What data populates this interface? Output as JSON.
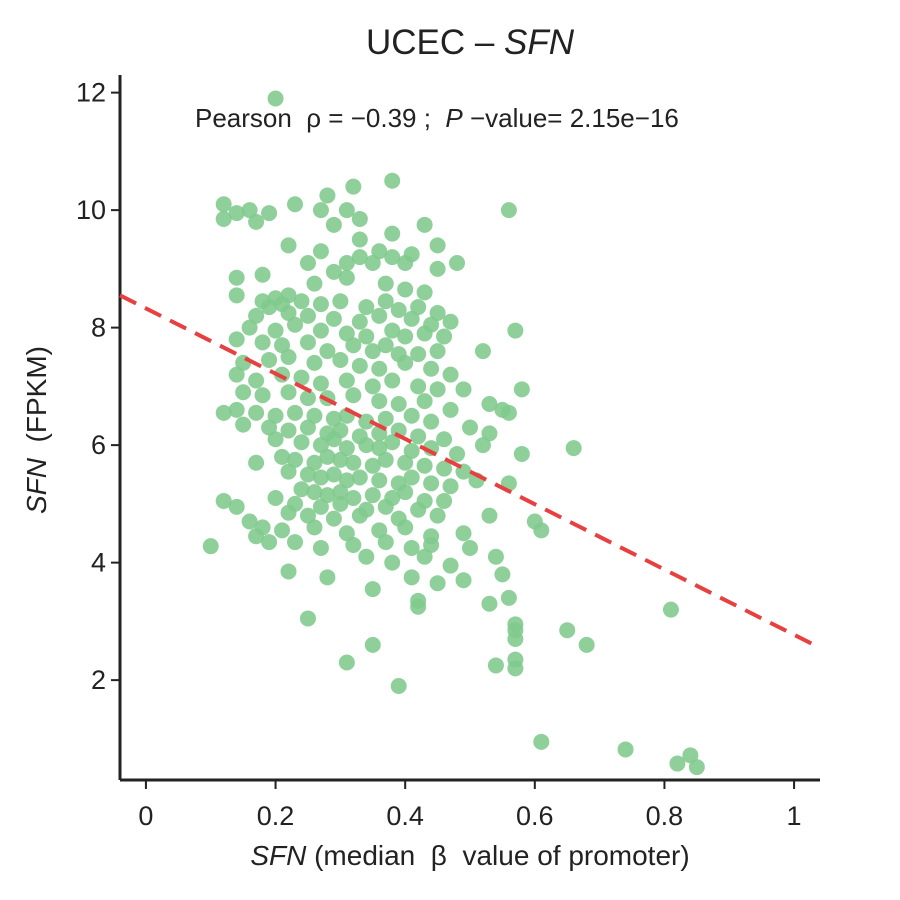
{
  "chart_data": {
    "type": "scatter",
    "title_parts": {
      "cancer": "UCEC",
      "sep": " – ",
      "gene": "SFN"
    },
    "xlabel_parts": {
      "gene": "SFN",
      "rest": " (median  β  value of promoter)"
    },
    "ylabel_parts": {
      "gene": "SFN",
      "rest": "  (FPKM)"
    },
    "annotation_parts": {
      "pre": "Pearson  ρ = −0.39 ;  ",
      "p": "P",
      "post": " −value= 2.15e−16"
    },
    "xlim": [
      -0.04,
      1.04
    ],
    "ylim": [
      0.3,
      12.3
    ],
    "x_ticks": [
      0,
      0.2,
      0.4,
      0.6,
      0.8,
      1
    ],
    "x_tick_labels": [
      "0",
      "0.2",
      "0.4",
      "0.6",
      "0.8",
      "1"
    ],
    "y_ticks": [
      2,
      4,
      6,
      8,
      10,
      12
    ],
    "y_tick_labels": [
      "2",
      "4",
      "6",
      "8",
      "10",
      "12"
    ],
    "point_color": "#7fca8c",
    "trend_color": "#e84040",
    "trend_line": {
      "x": [
        -0.04,
        1.04
      ],
      "y": [
        8.55,
        2.55
      ],
      "style": "dashed"
    },
    "grid": false,
    "legend": "none",
    "points": [
      [
        0.2,
        11.9
      ],
      [
        0.38,
        10.5
      ],
      [
        0.32,
        10.4
      ],
      [
        0.28,
        10.25
      ],
      [
        0.31,
        10.0
      ],
      [
        0.12,
        10.1
      ],
      [
        0.23,
        10.1
      ],
      [
        0.14,
        9.95
      ],
      [
        0.16,
        10.0
      ],
      [
        0.19,
        9.95
      ],
      [
        0.12,
        9.85
      ],
      [
        0.17,
        9.8
      ],
      [
        0.27,
        10.0
      ],
      [
        0.33,
        9.85
      ],
      [
        0.29,
        9.75
      ],
      [
        0.43,
        9.75
      ],
      [
        0.38,
        9.6
      ],
      [
        0.56,
        10.0
      ],
      [
        0.33,
        9.5
      ],
      [
        0.45,
        9.4
      ],
      [
        0.41,
        9.25
      ],
      [
        0.48,
        9.1
      ],
      [
        0.22,
        9.4
      ],
      [
        0.27,
        9.3
      ],
      [
        0.31,
        9.1
      ],
      [
        0.35,
        9.1
      ],
      [
        0.38,
        9.2
      ],
      [
        0.4,
        9.1
      ],
      [
        0.45,
        9.0
      ],
      [
        0.25,
        9.1
      ],
      [
        0.33,
        9.2
      ],
      [
        0.36,
        9.3
      ],
      [
        0.14,
        8.85
      ],
      [
        0.18,
        8.9
      ],
      [
        0.29,
        8.95
      ],
      [
        0.31,
        8.85
      ],
      [
        0.37,
        8.75
      ],
      [
        0.26,
        8.75
      ],
      [
        0.4,
        8.65
      ],
      [
        0.43,
        8.6
      ],
      [
        0.22,
        8.55
      ],
      [
        0.14,
        8.55
      ],
      [
        0.2,
        8.5
      ],
      [
        0.18,
        8.45
      ],
      [
        0.21,
        8.4
      ],
      [
        0.24,
        8.45
      ],
      [
        0.27,
        8.4
      ],
      [
        0.3,
        8.45
      ],
      [
        0.34,
        8.35
      ],
      [
        0.37,
        8.45
      ],
      [
        0.39,
        8.3
      ],
      [
        0.42,
        8.35
      ],
      [
        0.45,
        8.25
      ],
      [
        0.19,
        8.35
      ],
      [
        0.22,
        8.25
      ],
      [
        0.17,
        8.2
      ],
      [
        0.25,
        8.2
      ],
      [
        0.29,
        8.15
      ],
      [
        0.33,
        8.1
      ],
      [
        0.36,
        8.2
      ],
      [
        0.41,
        8.15
      ],
      [
        0.44,
        8.05
      ],
      [
        0.47,
        8.1
      ],
      [
        0.16,
        8.0
      ],
      [
        0.2,
        7.95
      ],
      [
        0.23,
        8.05
      ],
      [
        0.27,
        7.95
      ],
      [
        0.31,
        7.9
      ],
      [
        0.34,
        7.85
      ],
      [
        0.38,
        7.95
      ],
      [
        0.4,
        7.85
      ],
      [
        0.43,
        7.9
      ],
      [
        0.46,
        7.85
      ],
      [
        0.57,
        7.95
      ],
      [
        0.14,
        7.8
      ],
      [
        0.18,
        7.75
      ],
      [
        0.21,
        7.7
      ],
      [
        0.25,
        7.75
      ],
      [
        0.28,
        7.6
      ],
      [
        0.32,
        7.7
      ],
      [
        0.35,
        7.6
      ],
      [
        0.37,
        7.7
      ],
      [
        0.39,
        7.55
      ],
      [
        0.42,
        7.55
      ],
      [
        0.45,
        7.6
      ],
      [
        0.52,
        7.6
      ],
      [
        0.15,
        7.4
      ],
      [
        0.19,
        7.45
      ],
      [
        0.22,
        7.5
      ],
      [
        0.26,
        7.4
      ],
      [
        0.3,
        7.45
      ],
      [
        0.33,
        7.35
      ],
      [
        0.36,
        7.3
      ],
      [
        0.4,
        7.4
      ],
      [
        0.44,
        7.3
      ],
      [
        0.47,
        7.2
      ],
      [
        0.14,
        7.2
      ],
      [
        0.17,
        7.1
      ],
      [
        0.21,
        7.2
      ],
      [
        0.24,
        7.15
      ],
      [
        0.27,
        7.05
      ],
      [
        0.31,
        7.1
      ],
      [
        0.35,
        7.0
      ],
      [
        0.38,
        7.1
      ],
      [
        0.42,
        7.0
      ],
      [
        0.45,
        6.95
      ],
      [
        0.49,
        6.95
      ],
      [
        0.58,
        6.95
      ],
      [
        0.15,
        6.9
      ],
      [
        0.18,
        6.85
      ],
      [
        0.22,
        6.9
      ],
      [
        0.25,
        6.8
      ],
      [
        0.28,
        6.8
      ],
      [
        0.32,
        6.85
      ],
      [
        0.36,
        6.75
      ],
      [
        0.39,
        6.7
      ],
      [
        0.43,
        6.75
      ],
      [
        0.47,
        6.6
      ],
      [
        0.53,
        6.7
      ],
      [
        0.55,
        6.6
      ],
      [
        0.14,
        6.6
      ],
      [
        0.17,
        6.55
      ],
      [
        0.2,
        6.5
      ],
      [
        0.23,
        6.55
      ],
      [
        0.26,
        6.5
      ],
      [
        0.29,
        6.45
      ],
      [
        0.31,
        6.5
      ],
      [
        0.34,
        6.4
      ],
      [
        0.37,
        6.45
      ],
      [
        0.41,
        6.5
      ],
      [
        0.44,
        6.4
      ],
      [
        0.12,
        6.55
      ],
      [
        0.15,
        6.35
      ],
      [
        0.19,
        6.3
      ],
      [
        0.22,
        6.25
      ],
      [
        0.25,
        6.3
      ],
      [
        0.28,
        6.2
      ],
      [
        0.3,
        6.25
      ],
      [
        0.33,
        6.15
      ],
      [
        0.36,
        6.2
      ],
      [
        0.39,
        6.25
      ],
      [
        0.42,
        6.15
      ],
      [
        0.46,
        6.1
      ],
      [
        0.5,
        6.3
      ],
      [
        0.53,
        6.2
      ],
      [
        0.56,
        6.55
      ],
      [
        0.2,
        6.1
      ],
      [
        0.24,
        6.05
      ],
      [
        0.27,
        6.0
      ],
      [
        0.29,
        6.1
      ],
      [
        0.31,
        5.95
      ],
      [
        0.34,
        6.0
      ],
      [
        0.36,
        5.95
      ],
      [
        0.38,
        6.05
      ],
      [
        0.41,
        5.9
      ],
      [
        0.44,
        5.95
      ],
      [
        0.48,
        5.85
      ],
      [
        0.52,
        6.0
      ],
      [
        0.58,
        5.85
      ],
      [
        0.66,
        5.95
      ],
      [
        0.21,
        5.8
      ],
      [
        0.23,
        5.75
      ],
      [
        0.26,
        5.7
      ],
      [
        0.28,
        5.8
      ],
      [
        0.3,
        5.75
      ],
      [
        0.32,
        5.7
      ],
      [
        0.35,
        5.65
      ],
      [
        0.37,
        5.75
      ],
      [
        0.4,
        5.7
      ],
      [
        0.43,
        5.65
      ],
      [
        0.46,
        5.6
      ],
      [
        0.49,
        5.55
      ],
      [
        0.17,
        5.7
      ],
      [
        0.22,
        5.55
      ],
      [
        0.25,
        5.5
      ],
      [
        0.27,
        5.45
      ],
      [
        0.29,
        5.5
      ],
      [
        0.31,
        5.4
      ],
      [
        0.33,
        5.45
      ],
      [
        0.36,
        5.4
      ],
      [
        0.39,
        5.35
      ],
      [
        0.41,
        5.45
      ],
      [
        0.44,
        5.35
      ],
      [
        0.47,
        5.3
      ],
      [
        0.51,
        5.4
      ],
      [
        0.56,
        5.35
      ],
      [
        0.24,
        5.25
      ],
      [
        0.26,
        5.2
      ],
      [
        0.28,
        5.15
      ],
      [
        0.3,
        5.2
      ],
      [
        0.32,
        5.1
      ],
      [
        0.35,
        5.15
      ],
      [
        0.38,
        5.1
      ],
      [
        0.4,
        5.2
      ],
      [
        0.43,
        5.05
      ],
      [
        0.46,
        5.05
      ],
      [
        0.2,
        5.1
      ],
      [
        0.23,
        5.0
      ],
      [
        0.27,
        4.95
      ],
      [
        0.3,
        5.0
      ],
      [
        0.34,
        4.9
      ],
      [
        0.37,
        4.95
      ],
      [
        0.42,
        4.9
      ],
      [
        0.12,
        5.05
      ],
      [
        0.14,
        4.95
      ],
      [
        0.22,
        4.85
      ],
      [
        0.25,
        4.8
      ],
      [
        0.29,
        4.75
      ],
      [
        0.33,
        4.8
      ],
      [
        0.39,
        4.75
      ],
      [
        0.45,
        4.8
      ],
      [
        0.53,
        4.8
      ],
      [
        0.6,
        4.7
      ],
      [
        0.61,
        4.55
      ],
      [
        0.16,
        4.7
      ],
      [
        0.18,
        4.6
      ],
      [
        0.21,
        4.55
      ],
      [
        0.26,
        4.6
      ],
      [
        0.31,
        4.5
      ],
      [
        0.36,
        4.55
      ],
      [
        0.4,
        4.6
      ],
      [
        0.44,
        4.45
      ],
      [
        0.49,
        4.5
      ],
      [
        0.17,
        4.45
      ],
      [
        0.19,
        4.35
      ],
      [
        0.23,
        4.35
      ],
      [
        0.27,
        4.25
      ],
      [
        0.32,
        4.3
      ],
      [
        0.37,
        4.35
      ],
      [
        0.41,
        4.25
      ],
      [
        0.44,
        4.3
      ],
      [
        0.5,
        4.25
      ],
      [
        0.54,
        4.1
      ],
      [
        0.1,
        4.28
      ],
      [
        0.34,
        4.1
      ],
      [
        0.38,
        4.0
      ],
      [
        0.43,
        4.1
      ],
      [
        0.47,
        3.95
      ],
      [
        0.55,
        3.8
      ],
      [
        0.22,
        3.85
      ],
      [
        0.28,
        3.75
      ],
      [
        0.41,
        3.75
      ],
      [
        0.49,
        3.7
      ],
      [
        0.35,
        3.55
      ],
      [
        0.42,
        3.35
      ],
      [
        0.45,
        3.65
      ],
      [
        0.56,
        3.4
      ],
      [
        0.53,
        3.3
      ],
      [
        0.42,
        3.25
      ],
      [
        0.25,
        3.05
      ],
      [
        0.57,
        2.95
      ],
      [
        0.57,
        2.85
      ],
      [
        0.57,
        2.7
      ],
      [
        0.81,
        3.2
      ],
      [
        0.65,
        2.85
      ],
      [
        0.68,
        2.6
      ],
      [
        0.35,
        2.6
      ],
      [
        0.57,
        2.35
      ],
      [
        0.57,
        2.2
      ],
      [
        0.54,
        2.25
      ],
      [
        0.31,
        2.3
      ],
      [
        0.39,
        1.9
      ],
      [
        0.61,
        0.95
      ],
      [
        0.74,
        0.82
      ],
      [
        0.84,
        0.72
      ],
      [
        0.82,
        0.58
      ],
      [
        0.85,
        0.52
      ]
    ]
  }
}
